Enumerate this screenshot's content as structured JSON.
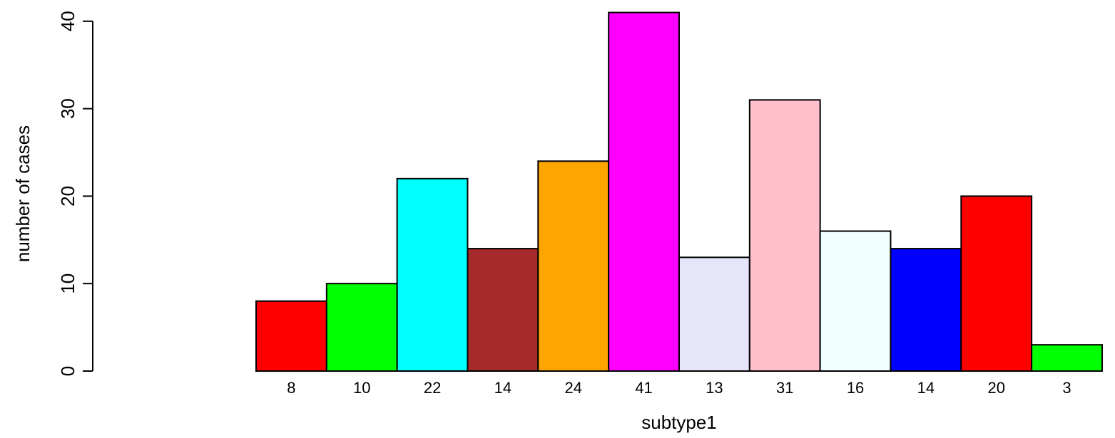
{
  "chart_data": {
    "type": "bar",
    "title": "",
    "xlabel": "subtype1",
    "ylabel": "number of cases",
    "ylim": [
      0,
      40
    ],
    "yticks": [
      0,
      10,
      20,
      30,
      40
    ],
    "categories": [
      "8",
      "10",
      "22",
      "14",
      "24",
      "41",
      "13",
      "31",
      "16",
      "14",
      "20",
      "3"
    ],
    "values": [
      8,
      10,
      22,
      14,
      24,
      41,
      13,
      31,
      16,
      14,
      20,
      3
    ],
    "colors": [
      "#ff0000",
      "#00ff00",
      "#00ffff",
      "#a52a2a",
      "#ffa500",
      "#ff00ff",
      "#e6e6fa",
      "#ffc0cb",
      "#f0ffff",
      "#0000ff",
      "#ff0000",
      "#00ff00"
    ],
    "grid": false,
    "legend": "none"
  }
}
